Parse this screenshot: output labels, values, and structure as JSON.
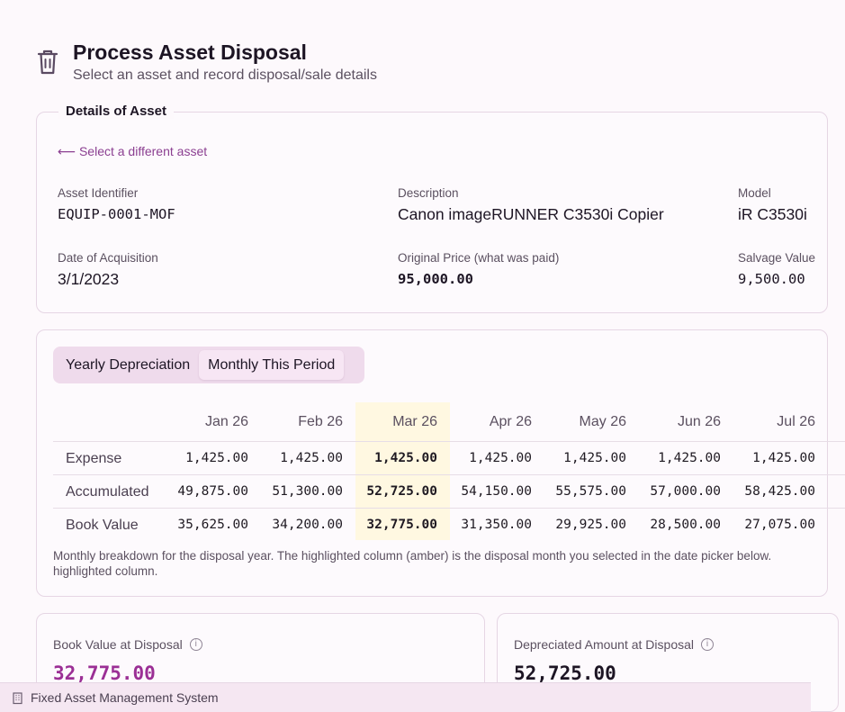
{
  "header": {
    "title": "Process Asset Disposal",
    "subtitle": "Select an asset and record disposal/sale details"
  },
  "details": {
    "legend": "Details of Asset",
    "back_link": "⟵ Select a different asset",
    "fields": {
      "asset_id": {
        "label": "Asset Identifier",
        "value": "EQUIP-0001-MOF"
      },
      "description": {
        "label": "Description",
        "value": "Canon imageRUNNER C3530i Copier"
      },
      "model": {
        "label": "Model",
        "value": "iR C3530i"
      },
      "acquisition": {
        "label": "Date of Acquisition",
        "value": "3/1/2023"
      },
      "original_price": {
        "label": "Original Price (what was paid)",
        "value": "95,000.00"
      },
      "salvage": {
        "label": "Salvage Value",
        "value": "9,500.00"
      }
    }
  },
  "schedule": {
    "tabs": [
      {
        "label": "Yearly Depreciation",
        "active": false
      },
      {
        "label": "Monthly This Period",
        "active": true
      }
    ],
    "months": [
      "Jan 26",
      "Feb 26",
      "Mar 26",
      "Apr 26",
      "May 26",
      "Jun 26",
      "Jul 26"
    ],
    "highlight_index": 2,
    "rows": [
      {
        "label": "Expense",
        "values": [
          "1,425.00",
          "1,425.00",
          "1,425.00",
          "1,425.00",
          "1,425.00",
          "1,425.00",
          "1,425.00"
        ]
      },
      {
        "label": "Accumulated",
        "values": [
          "49,875.00",
          "51,300.00",
          "52,725.00",
          "54,150.00",
          "55,575.00",
          "57,000.00",
          "58,425.00"
        ]
      },
      {
        "label": "Book Value",
        "values": [
          "35,625.00",
          "34,200.00",
          "32,775.00",
          "31,350.00",
          "29,925.00",
          "28,500.00",
          "27,075.00"
        ]
      }
    ],
    "note": "Monthly breakdown for the disposal year. The highlighted column (amber) is the disposal month you selected in the date picker below. highlighted column.",
    "highlight_color": "#fff8e1"
  },
  "summary": {
    "book_value": {
      "label": "Book Value at Disposal",
      "value": "32,775.00",
      "color": "#9b2f95"
    },
    "depreciated": {
      "label": "Depreciated Amount at Disposal",
      "value": "52,725.00",
      "color": "#1d1524"
    }
  },
  "footer": {
    "text": "Fixed Asset Management System"
  },
  "colors": {
    "accent": "#8b3f91",
    "tab_bg": "#efdbec"
  },
  "icons": {
    "header": "trash-icon",
    "info": "info-icon",
    "footer": "building-icon"
  }
}
